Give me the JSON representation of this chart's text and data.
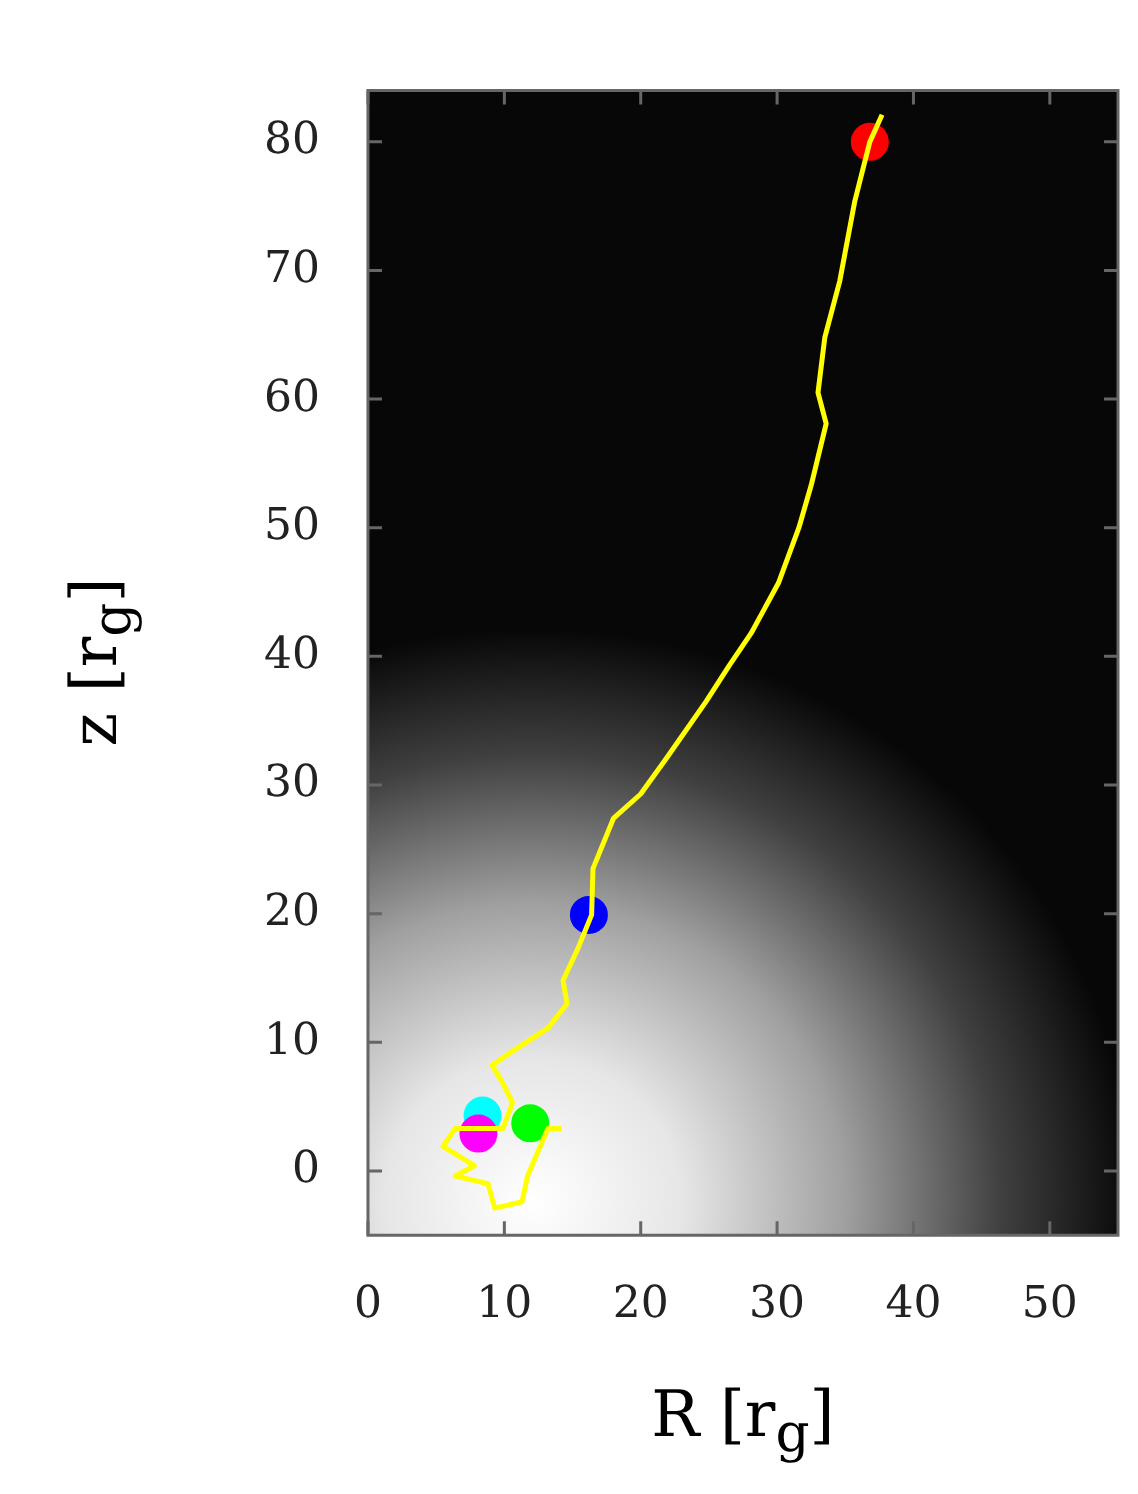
{
  "chart_data": {
    "type": "line",
    "xlabel": "R [r$_{g}$]",
    "ylabel": "z [r$_{g}$]",
    "xlim": [
      0,
      55
    ],
    "ylim": [
      -5,
      84
    ],
    "xticks": [
      0,
      10,
      20,
      30,
      40,
      50
    ],
    "yticks": [
      0,
      10,
      20,
      30,
      40,
      50,
      60,
      70,
      80
    ],
    "series": [
      {
        "type": "line",
        "color": "#ffff00",
        "marker": "none",
        "x": [
          37.7,
          36.8,
          35.7,
          34.6,
          33.5,
          33.0,
          33.6,
          32.5,
          31.6,
          30.1,
          28.1,
          26.5,
          24.8,
          21.9,
          20.0,
          18.0,
          16.5,
          16.4,
          15.4,
          14.3,
          14.6,
          13.2,
          10.3,
          9.1,
          9.9,
          10.6,
          9.9,
          6.4,
          5.5,
          7.8,
          6.4,
          8.8,
          9.3,
          11.3,
          11.7,
          13.2,
          14.2
        ],
        "values": [
          82.1,
          80.0,
          75.4,
          69.2,
          64.8,
          60.5,
          58.1,
          53.3,
          50.0,
          45.7,
          41.8,
          39.3,
          36.5,
          32.1,
          29.3,
          27.4,
          23.5,
          19.9,
          17.3,
          14.8,
          13.0,
          11.1,
          9.1,
          8.2,
          6.8,
          5.3,
          3.3,
          3.3,
          1.9,
          0.4,
          -0.4,
          -1.0,
          -2.9,
          -2.4,
          -0.4,
          3.3,
          3.3
        ]
      },
      {
        "type": "scatter",
        "marker": "circle",
        "colors": [
          "#ff0000",
          "#0000ff",
          "#00ff00",
          "#00ffff",
          "#ff00ff"
        ],
        "x": [
          36.8,
          16.2,
          11.9,
          8.4,
          8.1
        ],
        "values": [
          80.0,
          19.9,
          3.7,
          4.3,
          2.9
        ]
      }
    ]
  }
}
